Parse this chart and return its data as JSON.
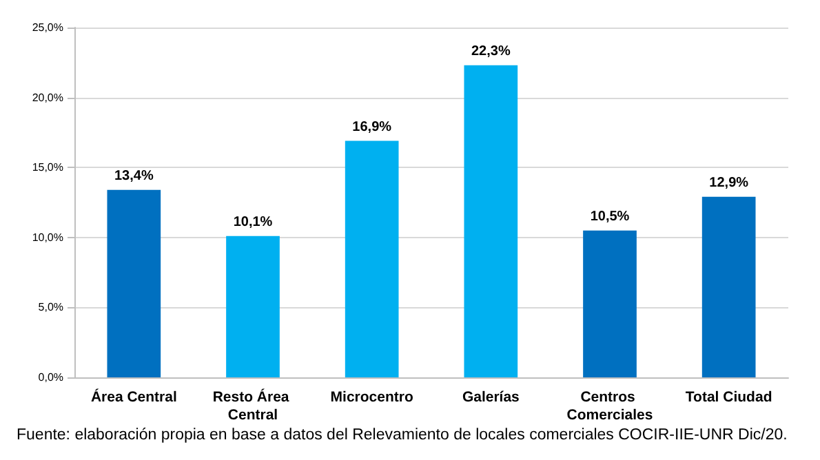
{
  "chart_data": {
    "type": "bar",
    "categories": [
      "Área Central",
      "Resto Área Central",
      "Microcentro",
      "Galerías",
      "Centros Comerciales",
      "Total Ciudad"
    ],
    "values": [
      13.4,
      10.1,
      16.9,
      22.3,
      10.5,
      12.9
    ],
    "colors": [
      "#0070c0",
      "#00b0f0",
      "#00b0f0",
      "#00b0f0",
      "#0070c0",
      "#0070c0"
    ],
    "value_labels": [
      "13,4%",
      "10,1%",
      "16,9%",
      "22,3%",
      "10,5%",
      "12,9%"
    ],
    "ylim": [
      0,
      25
    ],
    "yticks": [
      {
        "value": 0,
        "label": "0,0%"
      },
      {
        "value": 5,
        "label": "5,0%"
      },
      {
        "value": 10,
        "label": "10,0%"
      },
      {
        "value": 15,
        "label": "15,0%"
      },
      {
        "value": 20,
        "label": "20,0%"
      },
      {
        "value": 25,
        "label": "25,0%"
      }
    ],
    "grid": "y",
    "annotations": [
      "Fuente: elaboración propia en base a datos del Relevamiento de locales comerciales COCIR-IIE-UNR Dic/20."
    ]
  }
}
